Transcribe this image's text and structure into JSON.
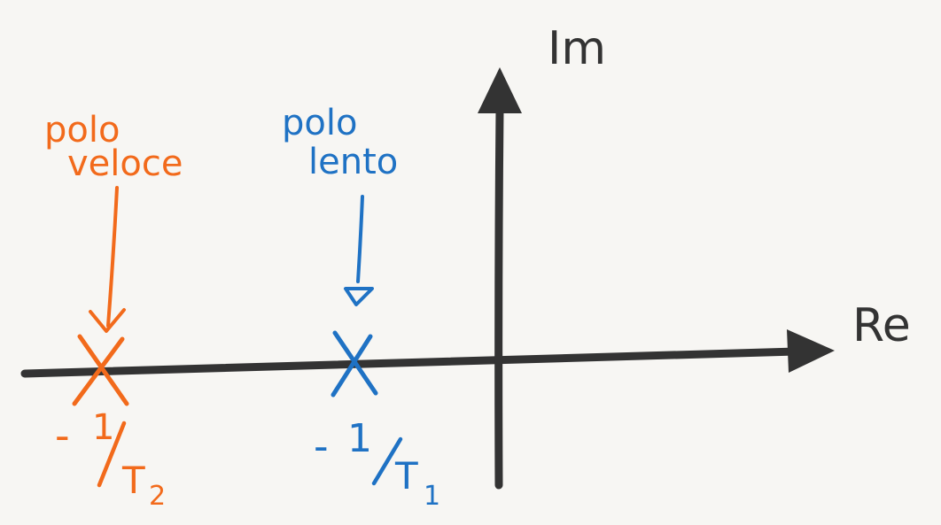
{
  "colors": {
    "background": "#f7f6f3",
    "axes": "#333333",
    "fast_pole": "#f26a1b",
    "slow_pole": "#1f72c4"
  },
  "axes": {
    "imag_label": "Im",
    "real_label": "Re"
  },
  "fast_pole": {
    "title_line1": "polo",
    "title_line2": "veloce",
    "marker_icon": "x-marker-icon",
    "value": {
      "sign": "-",
      "numerator": "1",
      "denominator": "T",
      "subscript": "2"
    }
  },
  "slow_pole": {
    "title_line1": "polo",
    "title_line2": "lento",
    "marker_icon": "x-marker-icon",
    "value": {
      "sign": "-",
      "numerator": "1",
      "denominator": "T",
      "subscript": "1"
    }
  }
}
